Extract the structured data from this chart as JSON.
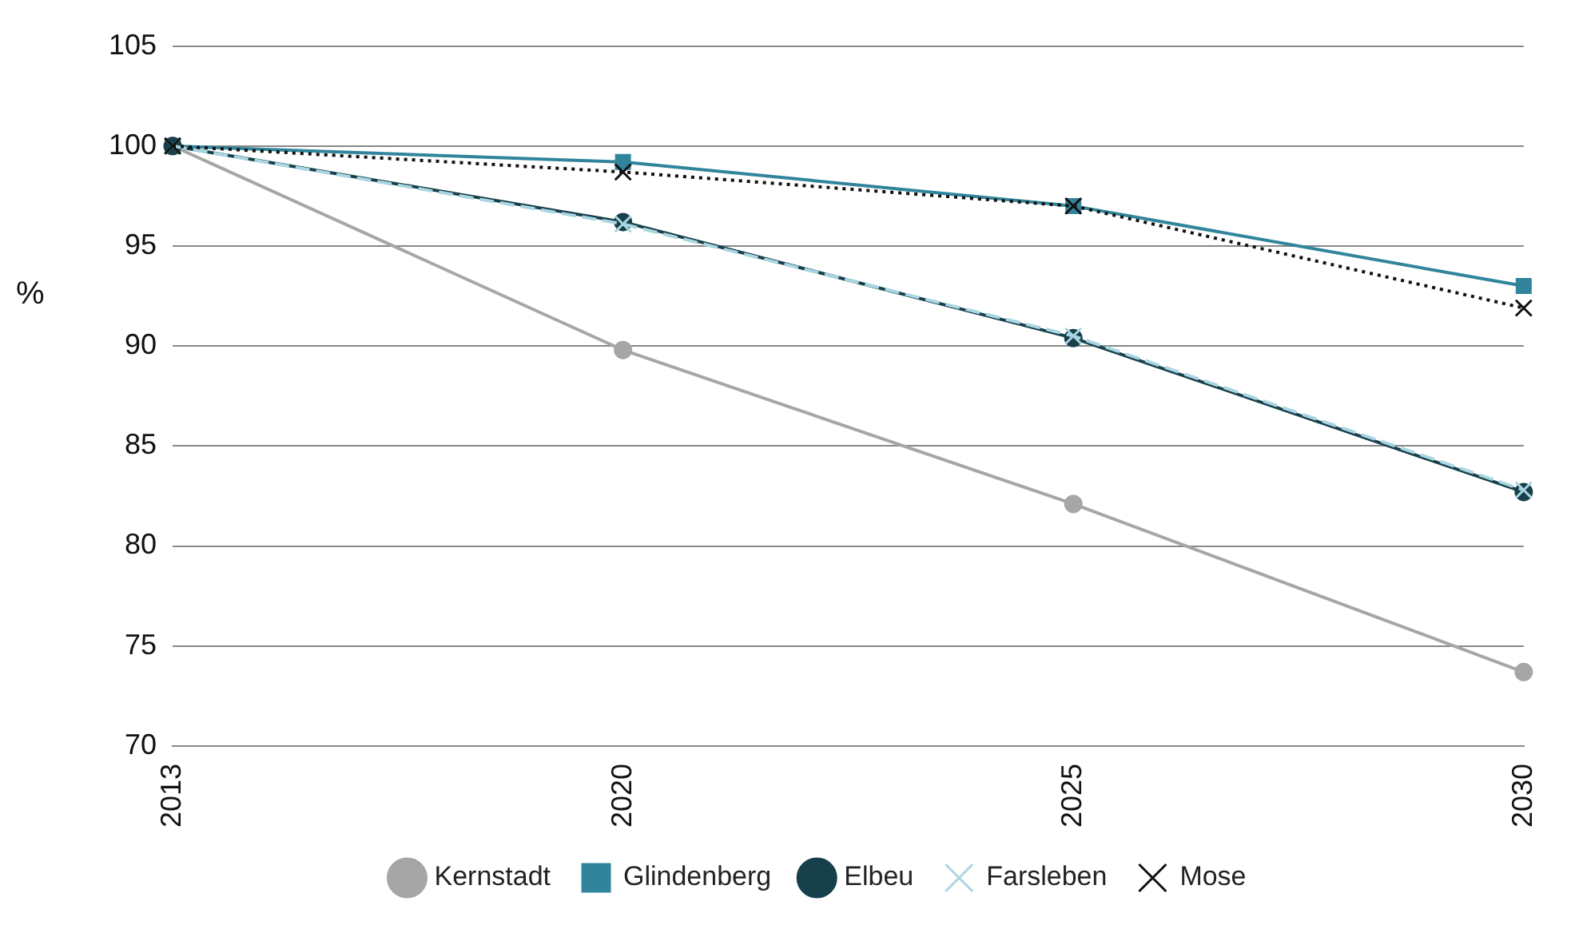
{
  "chart_data": {
    "type": "line",
    "ylabel": "%",
    "categories": [
      "2013",
      "2020",
      "2025",
      "2030"
    ],
    "ylim": [
      70,
      105
    ],
    "yticks": [
      70,
      75,
      80,
      85,
      90,
      95,
      100,
      105
    ],
    "grid": "y",
    "legend": "bottom",
    "series": [
      {
        "name": "Kernstadt",
        "color": "#a6a6a6",
        "values": [
          100,
          89.8,
          82.1,
          73.7
        ],
        "marker": "circle",
        "line_style": "solid"
      },
      {
        "name": "Glindenberg",
        "color": "#31849b",
        "values": [
          100,
          99.2,
          97.0,
          93.0
        ],
        "marker": "square",
        "line_style": "solid"
      },
      {
        "name": "Elbeu",
        "color": "#17404b",
        "values": [
          100,
          96.2,
          90.4,
          82.7
        ],
        "marker": "circle",
        "line_style": "solid"
      },
      {
        "name": "Farsleben",
        "color": "#a9d6e2",
        "values": [
          100,
          96.1,
          90.5,
          82.8
        ],
        "marker": "cross",
        "line_style": "dashed"
      },
      {
        "name": "Mose",
        "color": "#111111",
        "values": [
          100,
          98.7,
          97.0,
          91.9
        ],
        "marker": "cross",
        "line_style": "dotted"
      }
    ]
  }
}
